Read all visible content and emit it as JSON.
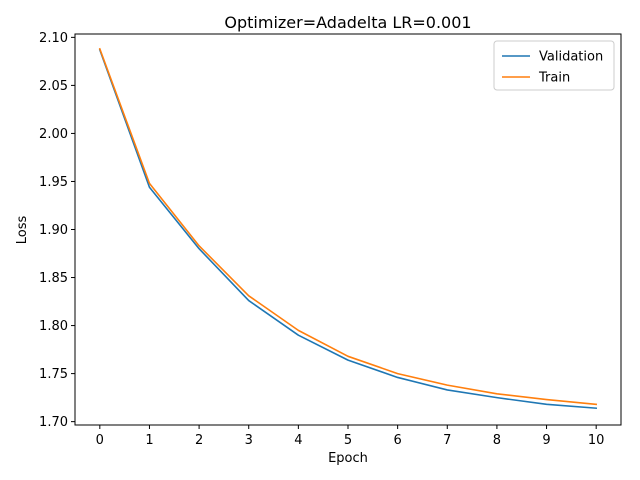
{
  "chart_data": {
    "type": "line",
    "title": "Optimizer=Adadelta LR=0.001",
    "xlabel": "Epoch",
    "ylabel": "Loss",
    "x": [
      0,
      1,
      2,
      3,
      4,
      5,
      6,
      7,
      8,
      9,
      10
    ],
    "xticks": [
      "0",
      "1",
      "2",
      "3",
      "4",
      "5",
      "6",
      "7",
      "8",
      "9",
      "10"
    ],
    "yticks": [
      "1.70",
      "1.75",
      "1.80",
      "1.85",
      "1.90",
      "1.95",
      "2.00",
      "2.05",
      "2.10"
    ],
    "xlim": [
      -0.5,
      10.5
    ],
    "ylim": [
      1.6965,
      2.1035
    ],
    "grid": false,
    "legend_position": "top-right",
    "series": [
      {
        "name": "Validation",
        "color": "#1f77b4",
        "values": [
          2.087,
          1.944,
          1.88,
          1.826,
          1.79,
          1.764,
          1.746,
          1.733,
          1.725,
          1.718,
          1.714
        ]
      },
      {
        "name": "Train",
        "color": "#ff7f0e",
        "values": [
          2.088,
          1.948,
          1.883,
          1.831,
          1.795,
          1.768,
          1.75,
          1.738,
          1.729,
          1.723,
          1.718
        ]
      }
    ]
  }
}
